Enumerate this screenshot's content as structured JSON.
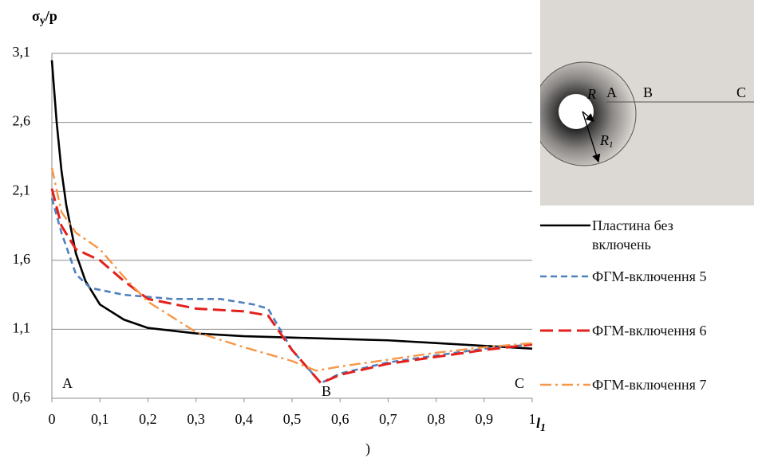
{
  "chart_data": {
    "type": "line",
    "y_label": {
      "main": "σ",
      "sub": "y",
      "tail": "/p"
    },
    "x_label": {
      "main": "l",
      "sub": "1"
    },
    "xlim": [
      0,
      1
    ],
    "ylim": [
      0.6,
      3.1
    ],
    "xticks": [
      0,
      {
        "value": 0.1,
        "label": "0,1"
      },
      {
        "value": 0.2,
        "label": "0,2"
      },
      {
        "value": 0.3,
        "label": "0,3"
      },
      {
        "value": 0.4,
        "label": "0,4"
      },
      {
        "value": 0.5,
        "label": "0,5"
      },
      {
        "value": 0.6,
        "label": "0,6"
      },
      {
        "value": 0.7,
        "label": "0,7"
      },
      {
        "value": 0.8,
        "label": "0,8"
      },
      {
        "value": 0.9,
        "label": "0,9"
      },
      1
    ],
    "yticks": [
      {
        "value": 0.6,
        "label": "0,6"
      },
      {
        "value": 1.1,
        "label": "1,1"
      },
      {
        "value": 1.6,
        "label": "1,6"
      },
      {
        "value": 2.1,
        "label": "2,1"
      },
      {
        "value": 2.6,
        "label": "2,6"
      },
      {
        "value": 3.1,
        "label": "3,1"
      }
    ],
    "grid": true,
    "legend": "right",
    "series": [
      {
        "name": "Пластина без включень",
        "color": "#000000",
        "dash": "solid",
        "x": [
          0,
          0.01,
          0.02,
          0.03,
          0.05,
          0.07,
          0.1,
          0.15,
          0.2,
          0.3,
          0.4,
          0.5,
          0.6,
          0.7,
          0.8,
          0.9,
          1
        ],
        "values": [
          3.05,
          2.6,
          2.25,
          2.0,
          1.65,
          1.45,
          1.28,
          1.17,
          1.11,
          1.07,
          1.05,
          1.04,
          1.03,
          1.02,
          1.0,
          0.98,
          0.96
        ]
      },
      {
        "name": "ФГМ-включення 5",
        "color": "#4f81bd",
        "dash": "short",
        "x": [
          0,
          0.02,
          0.05,
          0.08,
          0.15,
          0.25,
          0.35,
          0.42,
          0.45,
          0.5,
          0.56,
          0.6,
          0.7,
          0.8,
          0.9,
          1
        ],
        "values": [
          2.05,
          1.8,
          1.5,
          1.4,
          1.35,
          1.32,
          1.32,
          1.28,
          1.25,
          0.95,
          0.71,
          0.78,
          0.86,
          0.91,
          0.96,
          0.99
        ]
      },
      {
        "name": "ФГМ-включення 6",
        "color": "#e3201b",
        "dash": "long",
        "x": [
          0,
          0.02,
          0.05,
          0.1,
          0.15,
          0.2,
          0.3,
          0.4,
          0.45,
          0.5,
          0.56,
          0.6,
          0.7,
          0.8,
          0.9,
          1
        ],
        "values": [
          2.12,
          1.85,
          1.68,
          1.6,
          1.45,
          1.32,
          1.25,
          1.23,
          1.2,
          0.95,
          0.71,
          0.77,
          0.85,
          0.9,
          0.95,
          0.99
        ]
      },
      {
        "name": "ФГМ-включення 7",
        "color": "#f79646",
        "dash": "dashdot",
        "x": [
          0,
          0.02,
          0.05,
          0.1,
          0.15,
          0.2,
          0.3,
          0.4,
          0.45,
          0.5,
          0.55,
          0.6,
          0.7,
          0.8,
          0.9,
          1
        ],
        "values": [
          2.27,
          1.95,
          1.8,
          1.68,
          1.48,
          1.3,
          1.08,
          0.97,
          0.92,
          0.87,
          0.8,
          0.83,
          0.88,
          0.93,
          0.97,
          1.0
        ]
      }
    ],
    "annotations": [
      "A",
      "B",
      "C",
      ")"
    ],
    "inset_labels": {
      "r": "R",
      "a": "A",
      "b": "B",
      "c": "C",
      "r1": {
        "main": "R",
        "sub": "1"
      }
    }
  }
}
